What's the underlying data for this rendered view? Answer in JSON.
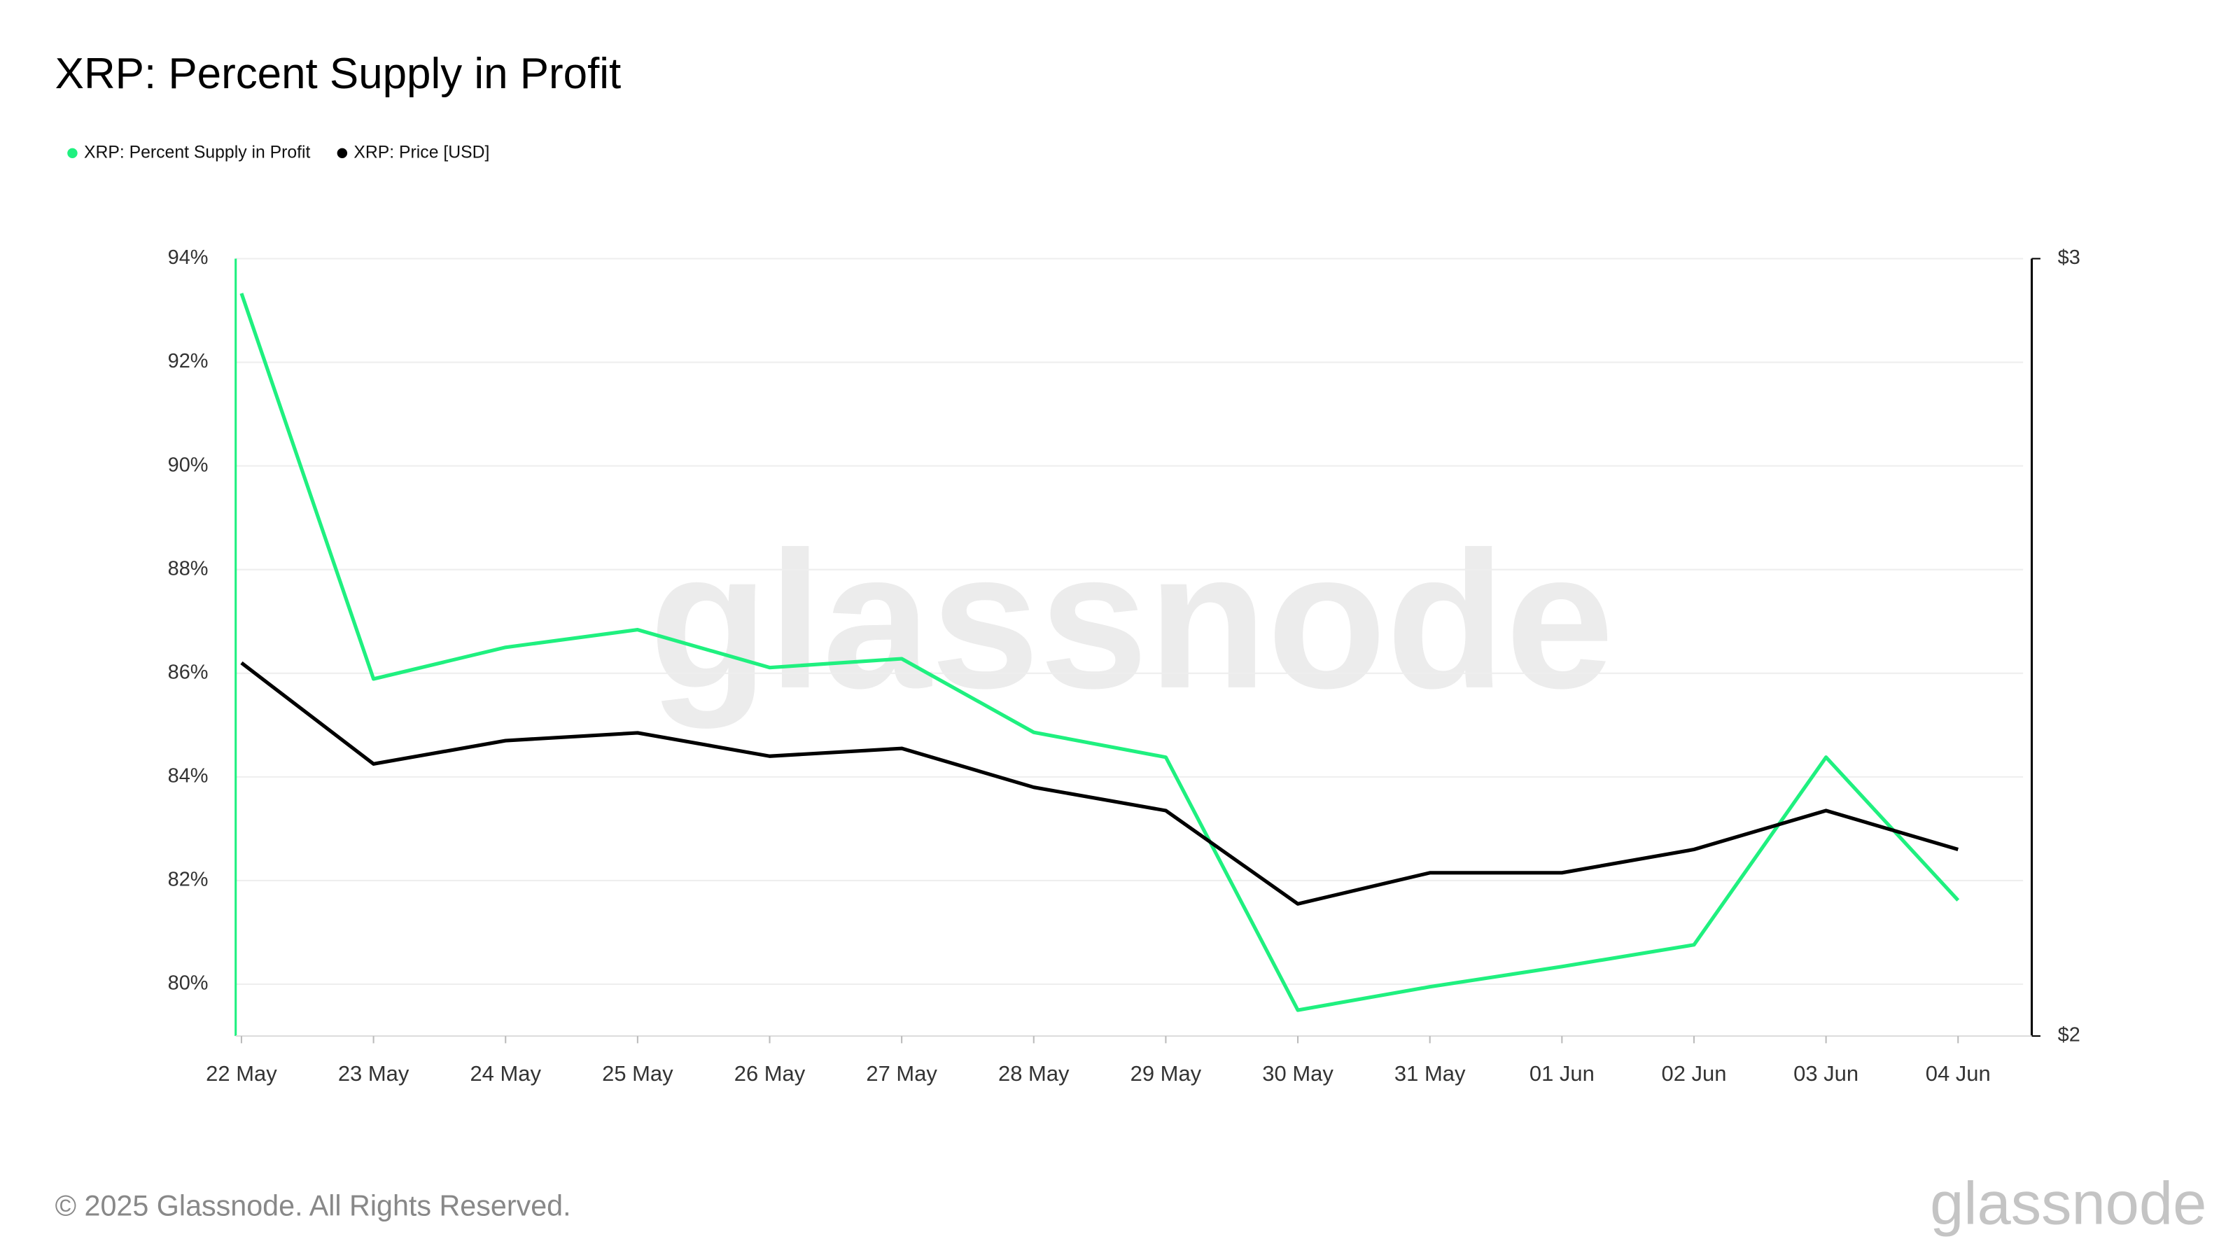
{
  "chart_data": {
    "type": "line",
    "title": "XRP: Percent Supply in Profit",
    "categories": [
      "22 May",
      "23 May",
      "24 May",
      "25 May",
      "26 May",
      "27 May",
      "28 May",
      "29 May",
      "30 May",
      "31 May",
      "01 Jun",
      "02 Jun",
      "03 Jun",
      "04 Jun"
    ],
    "series": [
      {
        "name": "XRP: Percent Supply in Profit",
        "color": "#1ff07f",
        "values": [
          93.33,
          85.89,
          86.5,
          86.84,
          86.11,
          86.28,
          84.86,
          84.38,
          79.5,
          79.95,
          80.34,
          80.76,
          84.38,
          81.62
        ]
      },
      {
        "name": "XRP: Price [USD]",
        "color": "#000000",
        "axis": "y2",
        "values": [
          2.48,
          2.35,
          2.38,
          2.39,
          2.36,
          2.37,
          2.32,
          2.29,
          2.17,
          2.21,
          2.21,
          2.24,
          2.29,
          2.24
        ]
      }
    ],
    "ylim": [
      79,
      94
    ],
    "yticks": [
      {
        "value": 80,
        "label": "80%"
      },
      {
        "value": 82,
        "label": "82%"
      },
      {
        "value": 84,
        "label": "84%"
      },
      {
        "value": 86,
        "label": "86%"
      },
      {
        "value": 88,
        "label": "88%"
      },
      {
        "value": 90,
        "label": "90%"
      },
      {
        "value": 92,
        "label": "92%"
      },
      {
        "value": 94,
        "label": "94%"
      }
    ],
    "y2lim": [
      2,
      3
    ],
    "y2ticks": [
      {
        "value": 2,
        "label": "$2"
      },
      {
        "value": 3,
        "label": "$3"
      }
    ],
    "grid": true,
    "legend": "top-left"
  },
  "footer": "© 2025 Glassnode. All Rights Reserved.",
  "logo": "glassnode"
}
